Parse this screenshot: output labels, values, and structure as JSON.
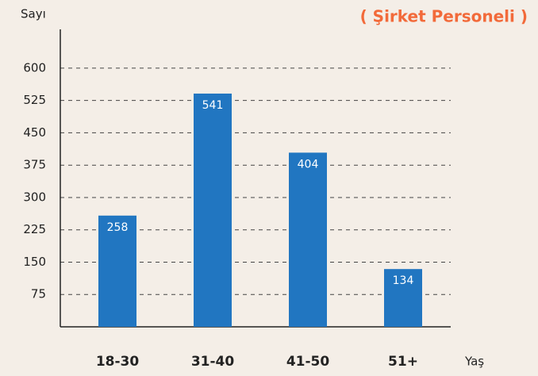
{
  "chart_data": {
    "type": "bar",
    "title": "( Şirket Personeli )",
    "y_label": "Sayı",
    "x_label": "Yaş",
    "categories": [
      "18-30",
      "31-40",
      "41-50",
      "51+"
    ],
    "values": [
      258,
      541,
      404,
      134
    ],
    "color": "#2176c1",
    "ylim": [
      0,
      690
    ],
    "yticks": [
      75,
      150,
      225,
      300,
      375,
      450,
      525,
      600
    ],
    "grid": true
  }
}
